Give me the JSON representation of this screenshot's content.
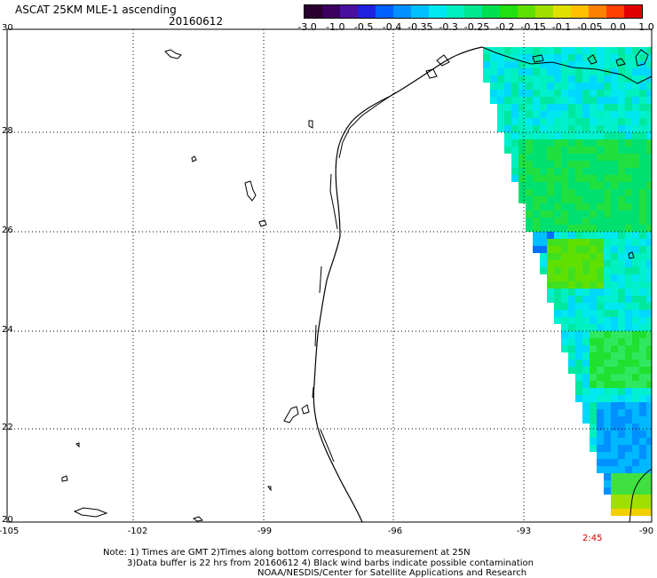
{
  "header": {
    "title": "ASCAT 25KM MLE-1 ascending",
    "date": "20160612"
  },
  "colorbar": {
    "labels": [
      "-3.0",
      "-1.0",
      "-0.5",
      "-0.4",
      "-0.35",
      "-0.3",
      "-0.25",
      "-0.2",
      "-0.15",
      "-0.1",
      "-0.05",
      "0.0",
      "1.0"
    ],
    "colors": [
      "#2a0030",
      "#3c0060",
      "#4a10a0",
      "#2020e0",
      "#0060ff",
      "#0090ff",
      "#00c0ff",
      "#00e8f0",
      "#00f0c0",
      "#00e890",
      "#00e050",
      "#20e010",
      "#60e000",
      "#a0e000",
      "#e0e000",
      "#ffc000",
      "#ff8000",
      "#ff4000",
      "#e00000"
    ]
  },
  "axes": {
    "lat_labels": [
      "30",
      "28",
      "26",
      "24",
      "22",
      "20"
    ],
    "lon_labels": [
      "-105",
      "-102",
      "-99",
      "-96",
      "-93",
      "-90"
    ]
  },
  "time_label": "2:45",
  "notes": [
    "Note: 1) Times are GMT 2)Times along bottom correspond to measurement at 25N",
    "3)Data buffer is 22 hrs from 20160612 4) Black wind barbs indicate possible contamination",
    "NOAA/NESDIS/Center for Satellite Applications and Research"
  ]
}
